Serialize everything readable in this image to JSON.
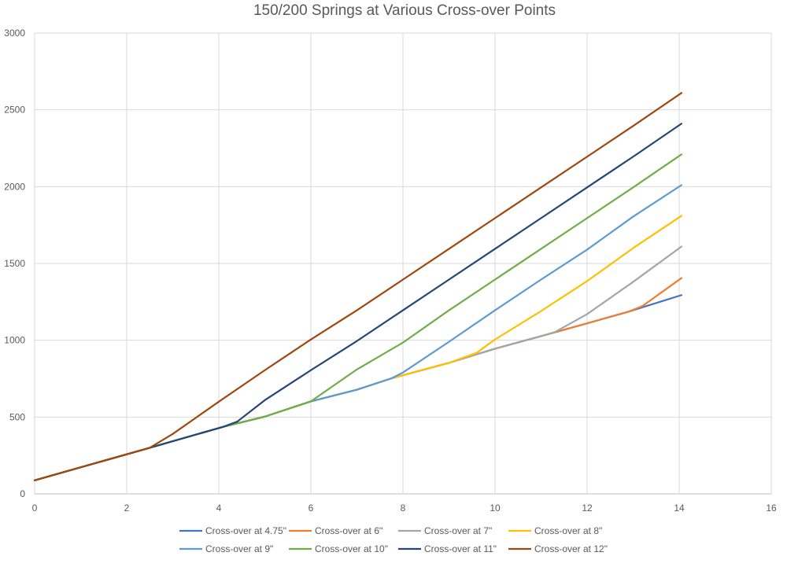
{
  "chart_data": {
    "type": "line",
    "title": "150/200 Springs at Various Cross-over Points",
    "xlabel": "",
    "ylabel": "",
    "xlim": [
      0,
      16
    ],
    "ylim": [
      0,
      3000
    ],
    "x_ticks": [
      0,
      2,
      4,
      6,
      8,
      10,
      12,
      14,
      16
    ],
    "y_ticks": [
      0,
      500,
      1000,
      1500,
      2000,
      2500,
      3000
    ],
    "grid": true,
    "legend_position": "bottom",
    "series": [
      {
        "name": "Cross-over at 4.75\"",
        "color": "#4472c4",
        "points": [
          [
            0,
            88
          ],
          [
            2.5,
            300
          ],
          [
            4.1,
            437
          ],
          [
            5,
            503
          ],
          [
            6,
            602
          ],
          [
            7,
            678
          ],
          [
            7.75,
            752
          ],
          [
            9,
            853
          ],
          [
            10,
            945
          ],
          [
            11,
            1027
          ],
          [
            12,
            1110
          ],
          [
            12.9,
            1186
          ],
          [
            14.05,
            1294
          ]
        ]
      },
      {
        "name": "Cross-over at 6\"",
        "color": "#ed7d31",
        "points": [
          [
            0,
            88
          ],
          [
            2.5,
            300
          ],
          [
            4.1,
            437
          ],
          [
            5,
            503
          ],
          [
            6,
            602
          ],
          [
            7,
            678
          ],
          [
            7.75,
            752
          ],
          [
            9,
            853
          ],
          [
            10,
            945
          ],
          [
            11,
            1027
          ],
          [
            12,
            1110
          ],
          [
            12.9,
            1186
          ],
          [
            13.2,
            1222
          ],
          [
            14.05,
            1405
          ]
        ]
      },
      {
        "name": "Cross-over at 7\"",
        "color": "#a5a5a5",
        "points": [
          [
            0,
            88
          ],
          [
            2.5,
            300
          ],
          [
            4.1,
            437
          ],
          [
            5,
            503
          ],
          [
            6,
            602
          ],
          [
            7,
            678
          ],
          [
            7.75,
            752
          ],
          [
            9,
            853
          ],
          [
            10,
            945
          ],
          [
            11,
            1027
          ],
          [
            11.3,
            1053
          ],
          [
            12,
            1170
          ],
          [
            13,
            1380
          ],
          [
            14.05,
            1610
          ]
        ]
      },
      {
        "name": "Cross-over at 8\"",
        "color": "#ffc000",
        "points": [
          [
            0,
            88
          ],
          [
            2.5,
            300
          ],
          [
            4.1,
            437
          ],
          [
            5,
            503
          ],
          [
            6,
            602
          ],
          [
            7,
            678
          ],
          [
            7.75,
            752
          ],
          [
            9,
            853
          ],
          [
            9.6,
            918
          ],
          [
            10,
            1005
          ],
          [
            11,
            1190
          ],
          [
            12,
            1385
          ],
          [
            13,
            1600
          ],
          [
            14.05,
            1810
          ]
        ]
      },
      {
        "name": "Cross-over at 9\"",
        "color": "#5b9bd5",
        "points": [
          [
            0,
            88
          ],
          [
            2.5,
            300
          ],
          [
            4.1,
            437
          ],
          [
            5,
            503
          ],
          [
            6,
            602
          ],
          [
            7,
            678
          ],
          [
            7.75,
            752
          ],
          [
            8,
            790
          ],
          [
            9,
            990
          ],
          [
            10,
            1195
          ],
          [
            11,
            1395
          ],
          [
            12,
            1590
          ],
          [
            13,
            1805
          ],
          [
            14.05,
            2010
          ]
        ]
      },
      {
        "name": "Cross-over at 10\"",
        "color": "#70ad47",
        "points": [
          [
            0,
            88
          ],
          [
            2.5,
            300
          ],
          [
            4.1,
            437
          ],
          [
            5,
            503
          ],
          [
            6,
            602
          ],
          [
            7,
            810
          ],
          [
            8,
            985
          ],
          [
            9,
            1195
          ],
          [
            10,
            1395
          ],
          [
            11,
            1595
          ],
          [
            12,
            1795
          ],
          [
            13,
            1995
          ],
          [
            14.05,
            2210
          ]
        ]
      },
      {
        "name": "Cross-over at 11\"",
        "color": "#264478",
        "points": [
          [
            0,
            88
          ],
          [
            2.5,
            300
          ],
          [
            4.1,
            437
          ],
          [
            4.4,
            470
          ],
          [
            5,
            610
          ],
          [
            6,
            805
          ],
          [
            7,
            995
          ],
          [
            8,
            1195
          ],
          [
            9,
            1395
          ],
          [
            10,
            1595
          ],
          [
            11,
            1795
          ],
          [
            12,
            1995
          ],
          [
            13,
            2195
          ],
          [
            14.05,
            2410
          ]
        ]
      },
      {
        "name": "Cross-over at 12\"",
        "color": "#9e480e",
        "points": [
          [
            0,
            88
          ],
          [
            2.5,
            300
          ],
          [
            3,
            390
          ],
          [
            4,
            600
          ],
          [
            5,
            805
          ],
          [
            6,
            1005
          ],
          [
            7,
            1195
          ],
          [
            8,
            1395
          ],
          [
            9,
            1595
          ],
          [
            10,
            1795
          ],
          [
            11,
            1995
          ],
          [
            12,
            2195
          ],
          [
            13,
            2395
          ],
          [
            14.05,
            2610
          ]
        ]
      }
    ]
  }
}
